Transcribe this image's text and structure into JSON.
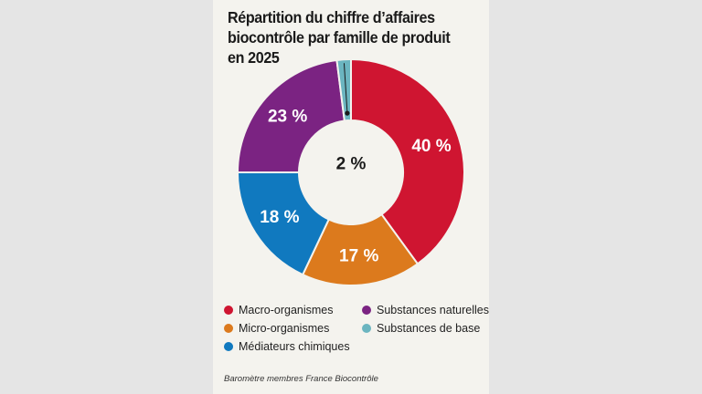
{
  "chart_data": {
    "type": "pie",
    "title": [
      "Répartition du chiffre d’affaires",
      "biocontrôle par famille de produit",
      "en 2025"
    ],
    "slices": [
      {
        "name": "Macro-organismes",
        "value": 40,
        "label": "40 %",
        "color": "#cf1531"
      },
      {
        "name": "Micro-organismes",
        "value": 17,
        "label": "17 %",
        "color": "#dc7a1d"
      },
      {
        "name": "Médiateurs chimiques",
        "value": 18,
        "label": "18 %",
        "color": "#1079bf"
      },
      {
        "name": "Substances naturelles",
        "value": 23,
        "label": "23 %",
        "color": "#7b2382"
      },
      {
        "name": "Substances de base",
        "value": 2,
        "label": "2 %",
        "color": "#6bb5c0"
      }
    ],
    "legend": [
      {
        "label": "Macro-organismes",
        "color": "#cf1531"
      },
      {
        "label": "Substances naturelles",
        "color": "#7b2382"
      },
      {
        "label": "Micro-organismes",
        "color": "#dc7a1d"
      },
      {
        "label": "Substances de base",
        "color": "#6bb5c0"
      },
      {
        "label": "Médiateurs chimiques",
        "color": "#1079bf"
      }
    ],
    "source": "Baromètre membres France Biocontrôle"
  }
}
